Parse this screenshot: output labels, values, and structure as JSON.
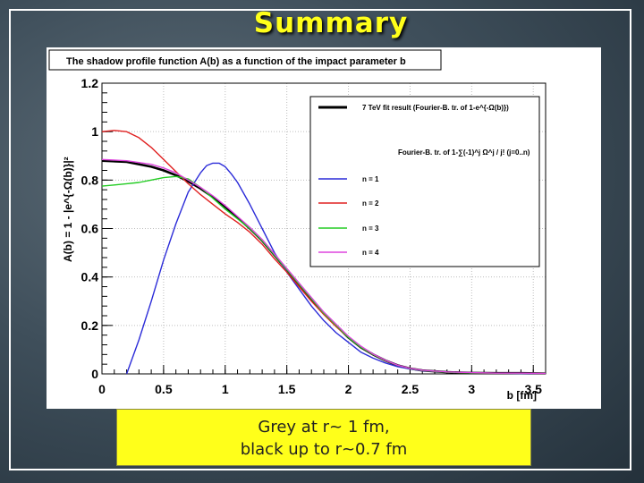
{
  "slide": {
    "title": "Summary",
    "caption_line1": "Grey at r~ 1 fm,",
    "caption_line2": "black up to r~0.7 fm"
  },
  "chart_data": {
    "type": "line",
    "title": "The shadow profile function A(b) as a function of the impact parameter b",
    "xlabel": "b [fm]",
    "ylabel": "A(b)  = 1 - |e^{-Ω(b)}|²",
    "xlim": [
      0,
      3.6
    ],
    "ylim": [
      0,
      1.2
    ],
    "x_ticks": [
      "0",
      "0.5",
      "1",
      "1.5",
      "2",
      "2.5",
      "3",
      "3.5"
    ],
    "y_ticks": [
      "0",
      "0.2",
      "0.4",
      "0.6",
      "0.8",
      "1",
      "1.2"
    ],
    "grid": true,
    "legend_position": "top-right",
    "legend_subheader": "Fourier-B. tr. of 1-∑(-1)^j Ω^j / j!  (j=0..n)",
    "series": [
      {
        "name": "7 TeV fit result (Fourier-B. tr. of 1-e^{-Ω(b)})",
        "color": "#000000",
        "x": [
          0,
          0.2,
          0.4,
          0.5,
          0.6,
          0.7,
          0.8,
          0.9,
          1.0,
          1.1,
          1.2,
          1.3,
          1.4,
          1.5,
          1.6,
          1.7,
          1.8,
          1.9,
          2.0,
          2.1,
          2.2,
          2.3,
          2.4,
          2.5,
          2.6,
          2.8,
          3.0,
          3.2,
          3.4,
          3.6
        ],
        "y": [
          0.88,
          0.875,
          0.855,
          0.84,
          0.82,
          0.795,
          0.765,
          0.73,
          0.69,
          0.645,
          0.6,
          0.55,
          0.49,
          0.43,
          0.37,
          0.31,
          0.25,
          0.2,
          0.15,
          0.11,
          0.08,
          0.055,
          0.035,
          0.022,
          0.014,
          0.007,
          0.004,
          0.003,
          0.003,
          0.002
        ]
      },
      {
        "name": "n = 1",
        "color": "#2b2bd8",
        "x": [
          0.2,
          0.3,
          0.4,
          0.5,
          0.6,
          0.7,
          0.8,
          0.85,
          0.9,
          0.95,
          1.0,
          1.05,
          1.1,
          1.2,
          1.3,
          1.4,
          1.5,
          1.6,
          1.7,
          1.8,
          1.9,
          2.0,
          2.1,
          2.2,
          2.3,
          2.4,
          2.5,
          2.6,
          2.8,
          3.0,
          3.2,
          3.4,
          3.6
        ],
        "y": [
          0.0,
          0.14,
          0.3,
          0.47,
          0.62,
          0.75,
          0.83,
          0.86,
          0.87,
          0.87,
          0.855,
          0.825,
          0.79,
          0.7,
          0.6,
          0.5,
          0.42,
          0.35,
          0.28,
          0.22,
          0.17,
          0.13,
          0.09,
          0.065,
          0.045,
          0.03,
          0.02,
          0.013,
          0.007,
          0.004,
          0.003,
          0.002,
          0.002
        ]
      },
      {
        "name": "n = 2",
        "color": "#e02020",
        "x": [
          0,
          0.1,
          0.2,
          0.3,
          0.4,
          0.5,
          0.6,
          0.7,
          0.8,
          0.9,
          1.0,
          1.1,
          1.2,
          1.3,
          1.4,
          1.5,
          1.6,
          1.7,
          1.8,
          1.9,
          2.0,
          2.1,
          2.2,
          2.3,
          2.4,
          2.5,
          2.6,
          2.8,
          3.0,
          3.2,
          3.4,
          3.6
        ],
        "y": [
          1.0,
          1.005,
          1.0,
          0.975,
          0.935,
          0.885,
          0.835,
          0.785,
          0.74,
          0.7,
          0.66,
          0.625,
          0.585,
          0.535,
          0.475,
          0.42,
          0.36,
          0.3,
          0.245,
          0.195,
          0.15,
          0.11,
          0.08,
          0.055,
          0.035,
          0.022,
          0.014,
          0.007,
          0.004,
          0.003,
          0.003,
          0.002
        ]
      },
      {
        "name": "n = 3",
        "color": "#22cc22",
        "x": [
          0,
          0.1,
          0.2,
          0.3,
          0.4,
          0.5,
          0.6,
          0.7,
          0.8,
          0.9,
          1.0,
          1.1,
          1.2,
          1.3,
          1.4,
          1.5,
          1.6,
          1.7,
          1.8,
          1.9,
          2.0,
          2.1,
          2.2,
          2.3,
          2.4,
          2.5,
          2.6,
          2.8,
          3.0,
          3.2,
          3.4,
          3.6
        ],
        "y": [
          0.775,
          0.78,
          0.785,
          0.79,
          0.8,
          0.81,
          0.815,
          0.805,
          0.77,
          0.725,
          0.68,
          0.64,
          0.6,
          0.55,
          0.49,
          0.43,
          0.37,
          0.31,
          0.25,
          0.2,
          0.15,
          0.11,
          0.08,
          0.055,
          0.035,
          0.022,
          0.014,
          0.007,
          0.004,
          0.003,
          0.003,
          0.002
        ]
      },
      {
        "name": "n = 4",
        "color": "#dd44dd",
        "x": [
          0,
          0.2,
          0.4,
          0.5,
          0.6,
          0.7,
          0.8,
          0.9,
          1.0,
          1.1,
          1.2,
          1.3,
          1.4,
          1.5,
          1.6,
          1.7,
          1.8,
          1.9,
          2.0,
          2.1,
          2.2,
          2.3,
          2.4,
          2.5,
          2.6,
          2.8,
          3.0,
          3.2,
          3.4,
          3.6
        ],
        "y": [
          0.885,
          0.88,
          0.865,
          0.85,
          0.83,
          0.8,
          0.77,
          0.735,
          0.695,
          0.65,
          0.605,
          0.555,
          0.495,
          0.435,
          0.375,
          0.315,
          0.255,
          0.205,
          0.155,
          0.115,
          0.082,
          0.056,
          0.036,
          0.023,
          0.015,
          0.008,
          0.005,
          0.003,
          0.003,
          0.002
        ]
      }
    ]
  }
}
